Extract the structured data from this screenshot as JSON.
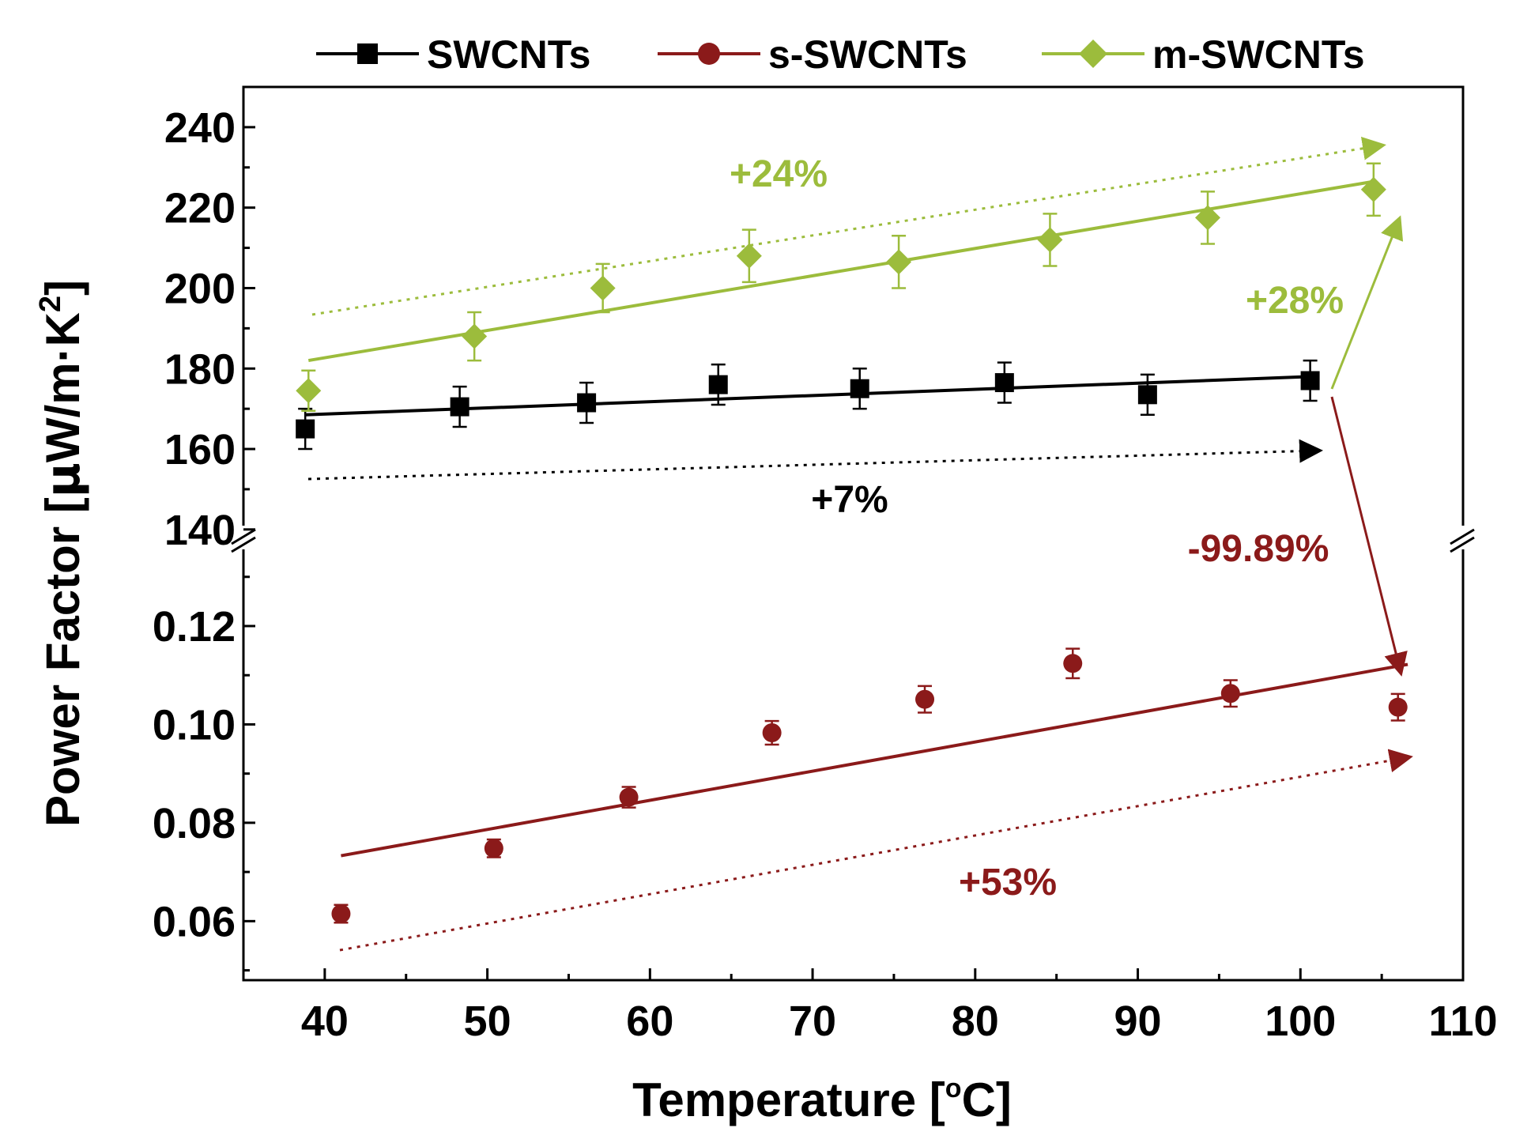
{
  "chart_data": {
    "type": "scatter",
    "xlabel_main": "Temperature [",
    "xlabel_deg": "o",
    "xlabel_unit": "C]",
    "ylabel_main": "Power Factor [",
    "ylabel_mu": "μ",
    "ylabel_unit": "W/m·K",
    "ylabel_sup": "2",
    "ylabel_close": "]",
    "xlim": [
      35,
      110
    ],
    "x_ticks": [
      "40",
      "50",
      "60",
      "70",
      "80",
      "90",
      "100",
      "110"
    ],
    "y_upper": {
      "ylim": [
        138,
        250
      ],
      "ticks": [
        "140",
        "160",
        "180",
        "200",
        "220",
        "240"
      ]
    },
    "y_lower": {
      "ylim": [
        0.048,
        0.138
      ],
      "ticks": [
        "0.06",
        "0.08",
        "0.10",
        "0.12"
      ]
    },
    "series": [
      {
        "name": "SWCNTs",
        "color": "#000000",
        "marker": "square",
        "panel": "upper",
        "x": [
          38.8,
          48.3,
          56.1,
          64.2,
          72.9,
          81.8,
          90.6,
          100.6
        ],
        "y": [
          165,
          170.5,
          171.5,
          176,
          175,
          176.5,
          173.5,
          177
        ],
        "err": [
          5,
          5,
          5,
          5,
          5,
          5,
          5,
          5
        ],
        "fit": {
          "x": [
            38.8,
            100.6
          ],
          "y": [
            168.5,
            178
          ]
        }
      },
      {
        "name": "s-SWCNTs",
        "color": "#8b1a1a",
        "marker": "circle",
        "panel": "lower",
        "x": [
          41.0,
          50.4,
          58.7,
          67.5,
          76.9,
          86.0,
          95.7,
          106.0
        ],
        "y": [
          0.0615,
          0.0748,
          0.0852,
          0.0983,
          0.1051,
          0.1124,
          0.1063,
          0.1035
        ],
        "err": [
          0.0018,
          0.0018,
          0.0021,
          0.0024,
          0.0027,
          0.003,
          0.0027,
          0.0027
        ],
        "fit": {
          "x": [
            41.0,
            106.6
          ],
          "y": [
            0.0733,
            0.1122
          ]
        }
      },
      {
        "name": "m-SWCNTs",
        "color": "#9cbc3c",
        "marker": "diamond",
        "panel": "upper",
        "x": [
          39.0,
          49.2,
          57.1,
          66.1,
          75.3,
          84.6,
          94.3,
          104.5
        ],
        "y": [
          174.5,
          188,
          200,
          208,
          206.5,
          212,
          217.5,
          224.5
        ],
        "err": [
          5,
          6,
          6,
          6.5,
          6.5,
          6.5,
          6.5,
          6.5
        ],
        "fit": {
          "x": [
            39.0,
            104.5
          ],
          "y": [
            182,
            226.5
          ]
        }
      }
    ],
    "annotations": [
      {
        "text": "+24%",
        "color": "#9cbc3c"
      },
      {
        "text": "+28%",
        "color": "#9cbc3c"
      },
      {
        "text": "+7%",
        "color": "#000000"
      },
      {
        "text": "-99.89%",
        "color": "#8b1a1a"
      },
      {
        "text": "+53%",
        "color": "#8b1a1a"
      }
    ]
  }
}
